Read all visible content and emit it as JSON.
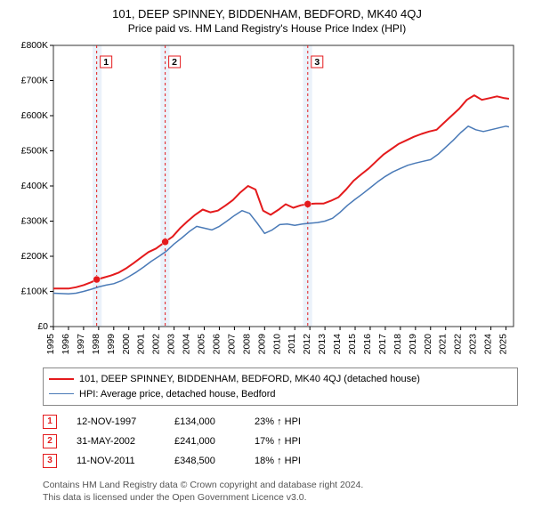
{
  "title_line1": "101, DEEP SPINNEY, BIDDENHAM, BEDFORD, MK40 4QJ",
  "title_line2": "Price paid vs. HM Land Registry's House Price Index (HPI)",
  "background_color": "#ffffff",
  "chart": {
    "type": "line",
    "plot_bg": "#ffffff",
    "border_color": "#333333",
    "x_years": [
      1995,
      1996,
      1997,
      1998,
      1999,
      2000,
      2001,
      2002,
      2003,
      2004,
      2005,
      2006,
      2007,
      2008,
      2009,
      2010,
      2011,
      2012,
      2013,
      2014,
      2015,
      2016,
      2017,
      2018,
      2019,
      2020,
      2021,
      2022,
      2023,
      2024,
      2025
    ],
    "xlim": [
      1995,
      2025.5
    ],
    "ylim": [
      0,
      800000
    ],
    "ytick_step": 100000,
    "yticks": [
      "£0",
      "£100K",
      "£200K",
      "£300K",
      "£400K",
      "£500K",
      "£600K",
      "£700K",
      "£800K"
    ],
    "highlight": {
      "fill": "#dbe7f5",
      "opacity": 0.55
    },
    "highlights_years": [
      [
        1997.6,
        1998.2
      ],
      [
        2002.1,
        2002.7
      ],
      [
        2011.55,
        2012.15
      ]
    ],
    "sale_line_color": "#e41a1c",
    "sale_line_dash": "3,3",
    "series": [
      {
        "name": "property",
        "label": "101, DEEP SPINNEY, BIDDENHAM, BEDFORD, MK40 4QJ (detached house)",
        "color": "#e41a1c",
        "width": 2,
        "points": [
          [
            1995.0,
            108000
          ],
          [
            1995.5,
            108000
          ],
          [
            1996.0,
            108000
          ],
          [
            1996.5,
            112000
          ],
          [
            1997.0,
            118000
          ],
          [
            1997.5,
            126000
          ],
          [
            1997.87,
            134000
          ],
          [
            1998.3,
            139000
          ],
          [
            1998.8,
            145000
          ],
          [
            1999.3,
            153000
          ],
          [
            1999.8,
            165000
          ],
          [
            2000.3,
            180000
          ],
          [
            2000.8,
            196000
          ],
          [
            2001.3,
            212000
          ],
          [
            2001.8,
            222000
          ],
          [
            2002.41,
            241000
          ],
          [
            2002.9,
            256000
          ],
          [
            2003.4,
            280000
          ],
          [
            2003.9,
            300000
          ],
          [
            2004.4,
            318000
          ],
          [
            2004.9,
            333000
          ],
          [
            2005.4,
            325000
          ],
          [
            2005.9,
            330000
          ],
          [
            2006.4,
            344000
          ],
          [
            2006.9,
            360000
          ],
          [
            2007.4,
            382000
          ],
          [
            2007.9,
            400000
          ],
          [
            2008.4,
            390000
          ],
          [
            2008.9,
            330000
          ],
          [
            2009.4,
            318000
          ],
          [
            2009.9,
            332000
          ],
          [
            2010.4,
            348000
          ],
          [
            2010.9,
            338000
          ],
          [
            2011.4,
            345000
          ],
          [
            2011.86,
            348500
          ],
          [
            2012.4,
            350000
          ],
          [
            2012.9,
            350000
          ],
          [
            2013.4,
            358000
          ],
          [
            2013.9,
            368000
          ],
          [
            2014.4,
            390000
          ],
          [
            2014.9,
            415000
          ],
          [
            2015.4,
            433000
          ],
          [
            2015.9,
            450000
          ],
          [
            2016.4,
            470000
          ],
          [
            2016.9,
            490000
          ],
          [
            2017.4,
            505000
          ],
          [
            2017.9,
            520000
          ],
          [
            2018.4,
            530000
          ],
          [
            2018.9,
            540000
          ],
          [
            2019.4,
            548000
          ],
          [
            2019.9,
            555000
          ],
          [
            2020.4,
            560000
          ],
          [
            2020.9,
            580000
          ],
          [
            2021.4,
            600000
          ],
          [
            2021.9,
            620000
          ],
          [
            2022.4,
            645000
          ],
          [
            2022.9,
            658000
          ],
          [
            2023.4,
            645000
          ],
          [
            2023.9,
            650000
          ],
          [
            2024.4,
            655000
          ],
          [
            2024.9,
            650000
          ],
          [
            2025.2,
            648000
          ]
        ]
      },
      {
        "name": "hpi",
        "label": "HPI: Average price, detached house, Bedford",
        "color": "#4a7ab7",
        "width": 1.5,
        "points": [
          [
            1995.0,
            95000
          ],
          [
            1995.5,
            94000
          ],
          [
            1996.0,
            93000
          ],
          [
            1996.5,
            95000
          ],
          [
            1997.0,
            100000
          ],
          [
            1997.5,
            106000
          ],
          [
            1998.0,
            113000
          ],
          [
            1998.5,
            118000
          ],
          [
            1999.0,
            122000
          ],
          [
            1999.5,
            130000
          ],
          [
            2000.0,
            142000
          ],
          [
            2000.5,
            155000
          ],
          [
            2001.0,
            170000
          ],
          [
            2001.5,
            186000
          ],
          [
            2002.0,
            200000
          ],
          [
            2002.5,
            215000
          ],
          [
            2003.0,
            235000
          ],
          [
            2003.5,
            252000
          ],
          [
            2004.0,
            270000
          ],
          [
            2004.5,
            285000
          ],
          [
            2005.0,
            280000
          ],
          [
            2005.5,
            275000
          ],
          [
            2006.0,
            285000
          ],
          [
            2006.5,
            300000
          ],
          [
            2007.0,
            316000
          ],
          [
            2007.5,
            330000
          ],
          [
            2008.0,
            322000
          ],
          [
            2008.5,
            295000
          ],
          [
            2009.0,
            265000
          ],
          [
            2009.5,
            275000
          ],
          [
            2010.0,
            290000
          ],
          [
            2010.5,
            292000
          ],
          [
            2011.0,
            288000
          ],
          [
            2011.5,
            292000
          ],
          [
            2012.0,
            294000
          ],
          [
            2012.5,
            296000
          ],
          [
            2013.0,
            300000
          ],
          [
            2013.5,
            308000
          ],
          [
            2014.0,
            325000
          ],
          [
            2014.5,
            345000
          ],
          [
            2015.0,
            362000
          ],
          [
            2015.5,
            378000
          ],
          [
            2016.0,
            395000
          ],
          [
            2016.5,
            412000
          ],
          [
            2017.0,
            427000
          ],
          [
            2017.5,
            440000
          ],
          [
            2018.0,
            450000
          ],
          [
            2018.5,
            459000
          ],
          [
            2019.0,
            465000
          ],
          [
            2019.5,
            470000
          ],
          [
            2020.0,
            475000
          ],
          [
            2020.5,
            490000
          ],
          [
            2021.0,
            510000
          ],
          [
            2021.5,
            530000
          ],
          [
            2022.0,
            552000
          ],
          [
            2022.5,
            570000
          ],
          [
            2023.0,
            560000
          ],
          [
            2023.5,
            555000
          ],
          [
            2024.0,
            560000
          ],
          [
            2024.5,
            565000
          ],
          [
            2025.0,
            570000
          ],
          [
            2025.2,
            568000
          ]
        ]
      }
    ],
    "sales": [
      {
        "n": "1",
        "xyear": 1997.87,
        "y": 134000,
        "date": "12-NOV-1997",
        "price": "£134,000",
        "ratio": "23% ↑ HPI"
      },
      {
        "n": "2",
        "xyear": 2002.41,
        "y": 241000,
        "date": "31-MAY-2002",
        "price": "£241,000",
        "ratio": "17% ↑ HPI"
      },
      {
        "n": "3",
        "xyear": 2011.86,
        "y": 348500,
        "date": "11-NOV-2011",
        "price": "£348,500",
        "ratio": "18% ↑ HPI"
      }
    ],
    "sale_marker": {
      "color": "#e41a1c",
      "radius": 4
    },
    "sale_badge": {
      "border": "#e41a1c",
      "text": "#e41a1c",
      "bg": "#ffffff"
    }
  },
  "footnote_line1": "Contains HM Land Registry data © Crown copyright and database right 2024.",
  "footnote_line2": "This data is licensed under the Open Government Licence v3.0."
}
